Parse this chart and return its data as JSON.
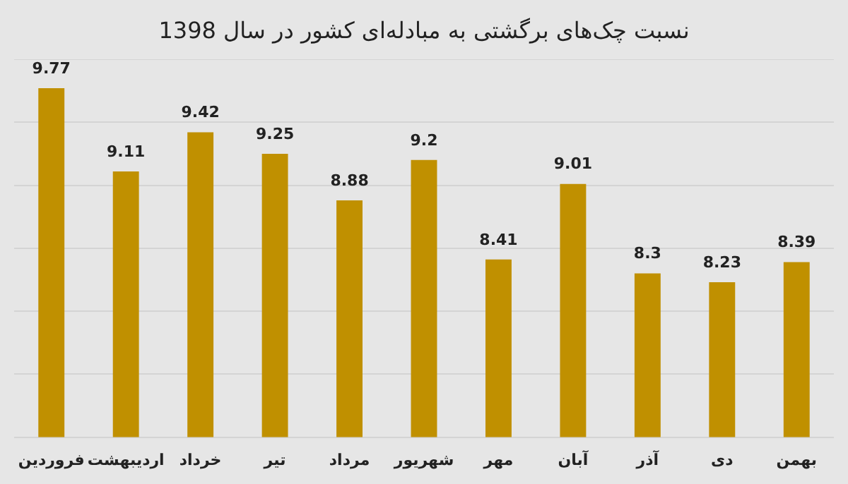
{
  "chart_data": {
    "type": "bar",
    "title": "نسبت چک‌های برگشتی به مبادله‌ای کشور در سال 1398",
    "categories": [
      "فروردین",
      "اردیبهشت",
      "خرداد",
      "تیر",
      "مرداد",
      "شهریور",
      "مهر",
      "آبان",
      "آذر",
      "دی",
      "بهمن"
    ],
    "values": [
      9.77,
      9.11,
      9.42,
      9.25,
      8.88,
      9.2,
      8.41,
      9.01,
      8.3,
      8.23,
      8.39
    ],
    "color": "#c09000",
    "ylim": [
      7,
      10
    ],
    "yticks": [
      {
        "value": 7,
        "label": null
      },
      {
        "value": 7.5,
        "label": null
      },
      {
        "value": 8,
        "label": null
      },
      {
        "value": 8.5,
        "label": null
      },
      {
        "value": 9,
        "label": null
      },
      {
        "value": 9.5,
        "label": null
      },
      {
        "value": 10,
        "label": null
      }
    ],
    "tick_labels": "x",
    "grid": "y",
    "data_labels": true
  }
}
